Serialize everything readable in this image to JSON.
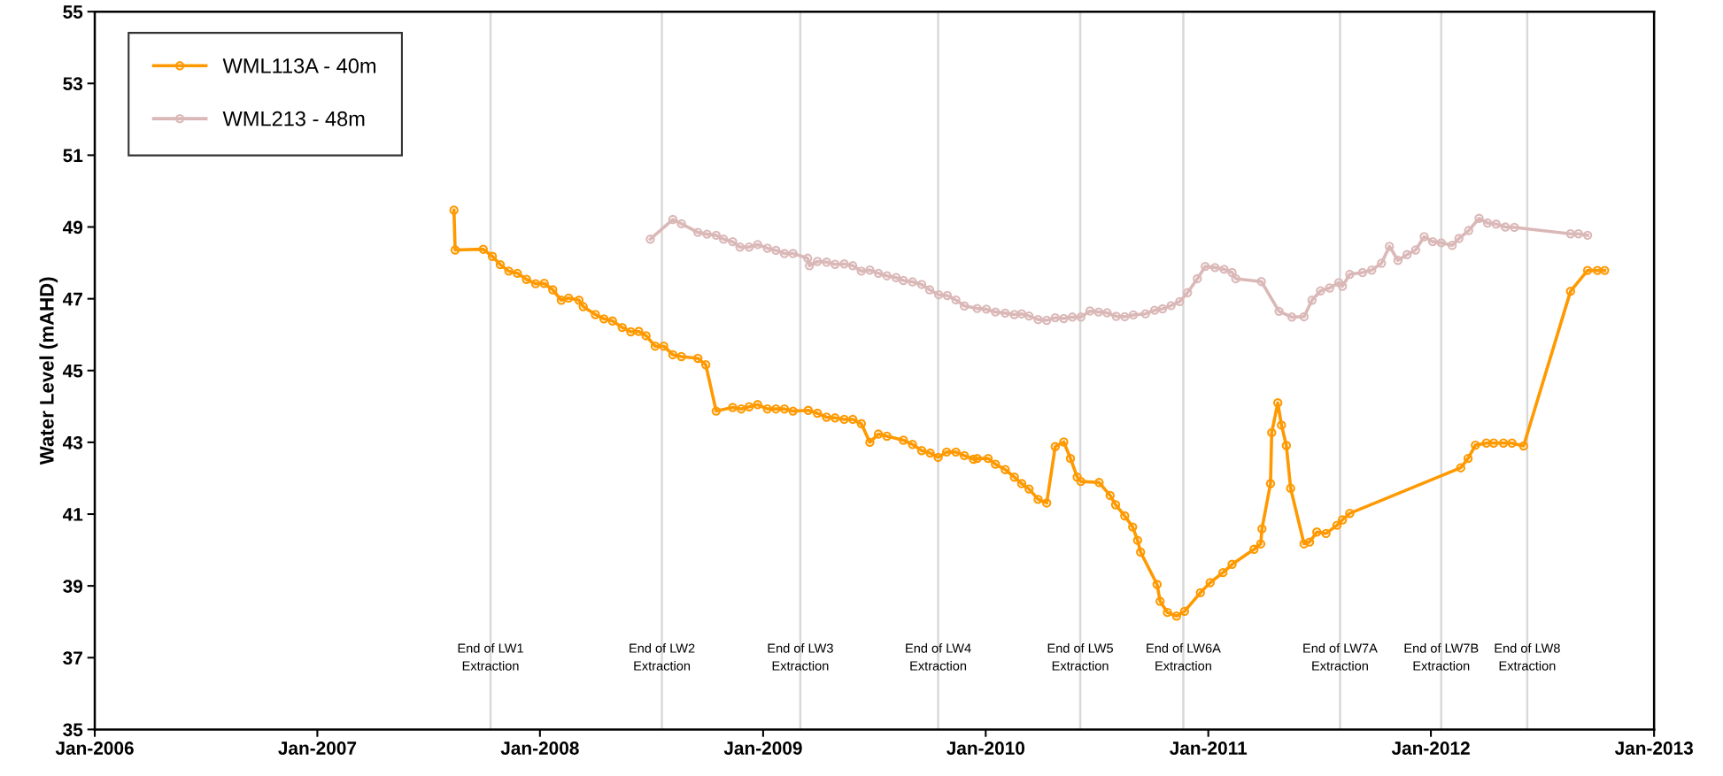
{
  "chart_data": {
    "type": "line",
    "ylabel": "Water Level (mAHD)",
    "xlim": [
      "2006-01-01",
      "2013-01-01"
    ],
    "xticks": [
      {
        "value": "2006-01-01",
        "label": "Jan-2006"
      },
      {
        "value": "2007-01-01",
        "label": "Jan-2007"
      },
      {
        "value": "2008-01-01",
        "label": "Jan-2008"
      },
      {
        "value": "2009-01-01",
        "label": "Jan-2009"
      },
      {
        "value": "2010-01-01",
        "label": "Jan-2010"
      },
      {
        "value": "2011-01-01",
        "label": "Jan-2011"
      },
      {
        "value": "2012-01-01",
        "label": "Jan-2012"
      },
      {
        "value": "2013-01-01",
        "label": "Jan-2013"
      }
    ],
    "ylim": [
      35,
      55
    ],
    "yticks": [
      35,
      37,
      39,
      41,
      43,
      45,
      47,
      49,
      51,
      53,
      55
    ],
    "grid": false,
    "legend": "top left",
    "marker": "circle",
    "line_style": "solid",
    "series": [
      {
        "name": "WML113A - 40m",
        "color": "#ff9900",
        "x": [
          "2007-08-13",
          "2007-08-15",
          "2007-09-30",
          "2007-10-15",
          "2007-10-28",
          "2007-11-11",
          "2007-11-25",
          "2007-12-10",
          "2007-12-25",
          "2008-01-08",
          "2008-01-22",
          "2008-02-05",
          "2008-02-17",
          "2008-03-05",
          "2008-03-12",
          "2008-04-01",
          "2008-04-15",
          "2008-04-29",
          "2008-05-15",
          "2008-05-29",
          "2008-06-11",
          "2008-06-23",
          "2008-07-08",
          "2008-07-22",
          "2008-08-06",
          "2008-08-20",
          "2008-09-16",
          "2008-09-29",
          "2008-10-16",
          "2008-11-12",
          "2008-11-26",
          "2008-12-09",
          "2008-12-23",
          "2009-01-08",
          "2009-01-22",
          "2009-02-05",
          "2009-02-19",
          "2009-03-16",
          "2009-03-31",
          "2009-04-15",
          "2009-04-29",
          "2009-05-14",
          "2009-05-28",
          "2009-06-11",
          "2009-06-25",
          "2009-07-09",
          "2009-07-23",
          "2009-08-19",
          "2009-09-03",
          "2009-09-18",
          "2009-10-02",
          "2009-10-15",
          "2009-10-29",
          "2009-11-13",
          "2009-11-27",
          "2009-12-12",
          "2009-12-18",
          "2010-01-05",
          "2010-01-17",
          "2010-02-02",
          "2010-02-17",
          "2010-03-01",
          "2010-03-13",
          "2010-03-28",
          "2010-04-11",
          "2010-04-25",
          "2010-05-09",
          "2010-05-20",
          "2010-05-31",
          "2010-06-06",
          "2010-07-06",
          "2010-07-24",
          "2010-08-02",
          "2010-08-17",
          "2010-08-30",
          "2010-09-07",
          "2010-09-12",
          "2010-10-09",
          "2010-10-14",
          "2010-10-26",
          "2010-11-10",
          "2010-11-23",
          "2010-12-19",
          "2011-01-04",
          "2011-01-25",
          "2011-02-09",
          "2011-03-17",
          "2011-03-28",
          "2011-03-30",
          "2011-04-13",
          "2011-04-15",
          "2011-04-25",
          "2011-05-01",
          "2011-05-09",
          "2011-05-16",
          "2011-06-07",
          "2011-06-16",
          "2011-06-28",
          "2011-07-13",
          "2011-07-31",
          "2011-08-09",
          "2011-08-21",
          "2012-02-19",
          "2012-03-02",
          "2012-03-14",
          "2012-04-01",
          "2012-04-13",
          "2012-04-29",
          "2012-05-13",
          "2012-06-01",
          "2012-08-17",
          "2012-09-14",
          "2012-09-30",
          "2012-10-12"
        ],
        "values": [
          49.47,
          48.36,
          48.38,
          48.18,
          47.95,
          47.77,
          47.71,
          47.54,
          47.42,
          47.43,
          47.25,
          46.96,
          47.02,
          46.96,
          46.78,
          46.56,
          46.44,
          46.38,
          46.2,
          46.08,
          46.09,
          45.97,
          45.68,
          45.68,
          45.44,
          45.39,
          45.34,
          45.16,
          43.87,
          43.97,
          43.93,
          43.99,
          44.05,
          43.93,
          43.93,
          43.93,
          43.87,
          43.89,
          43.81,
          43.7,
          43.68,
          43.64,
          43.64,
          43.52,
          43.0,
          43.23,
          43.17,
          43.06,
          42.94,
          42.77,
          42.7,
          42.58,
          42.73,
          42.73,
          42.63,
          42.53,
          42.55,
          42.55,
          42.39,
          42.24,
          42.03,
          41.85,
          41.7,
          41.41,
          41.31,
          42.88,
          43.01,
          42.55,
          42.03,
          41.91,
          41.88,
          41.52,
          41.26,
          40.95,
          40.64,
          40.27,
          39.94,
          39.04,
          38.57,
          38.26,
          38.16,
          38.29,
          38.81,
          39.09,
          39.37,
          39.6,
          40.02,
          40.17,
          40.59,
          41.85,
          43.27,
          44.1,
          43.48,
          42.91,
          41.72,
          40.17,
          40.22,
          40.5,
          40.46,
          40.69,
          40.84,
          41.02,
          42.29,
          42.55,
          42.92,
          42.98,
          42.98,
          42.98,
          42.98,
          42.9,
          47.21,
          47.79,
          47.79,
          47.79
        ]
      },
      {
        "name": "WML213 - 48m",
        "color": "#dbb8b8",
        "x": [
          "2008-06-30",
          "2008-08-06",
          "2008-08-20",
          "2008-09-16",
          "2008-10-01",
          "2008-10-16",
          "2008-10-28",
          "2008-11-12",
          "2008-11-24",
          "2008-12-09",
          "2008-12-23",
          "2009-01-08",
          "2009-01-22",
          "2009-02-05",
          "2009-02-19",
          "2009-03-15",
          "2009-03-18",
          "2009-03-31",
          "2009-04-15",
          "2009-04-29",
          "2009-05-14",
          "2009-05-28",
          "2009-06-11",
          "2009-06-25",
          "2009-07-09",
          "2009-07-23",
          "2009-08-07",
          "2009-08-19",
          "2009-09-03",
          "2009-09-18",
          "2009-10-01",
          "2009-10-16",
          "2009-10-30",
          "2009-11-13",
          "2009-11-27",
          "2009-12-18",
          "2010-01-02",
          "2010-01-17",
          "2010-02-02",
          "2010-02-17",
          "2010-03-01",
          "2010-03-13",
          "2010-03-28",
          "2010-04-11",
          "2010-04-25",
          "2010-05-09",
          "2010-05-23",
          "2010-06-06",
          "2010-06-21",
          "2010-07-05",
          "2010-07-19",
          "2010-08-03",
          "2010-08-17",
          "2010-08-31",
          "2010-09-20",
          "2010-10-05",
          "2010-10-18",
          "2010-11-01",
          "2010-11-15",
          "2010-11-28",
          "2010-12-14",
          "2010-12-27",
          "2011-01-12",
          "2011-01-27",
          "2011-02-09",
          "2011-02-15",
          "2011-03-29",
          "2011-04-27",
          "2011-05-18",
          "2011-06-07",
          "2011-06-20",
          "2011-07-04",
          "2011-07-19",
          "2011-08-03",
          "2011-08-09",
          "2011-08-21",
          "2011-09-11",
          "2011-09-26",
          "2011-10-12",
          "2011-10-25",
          "2011-11-08",
          "2011-11-23",
          "2011-12-07",
          "2011-12-21",
          "2012-01-04",
          "2012-01-18",
          "2012-02-05",
          "2012-02-16",
          "2012-03-03",
          "2012-03-20",
          "2012-04-03",
          "2012-04-17",
          "2012-05-02",
          "2012-05-17",
          "2012-08-17",
          "2012-08-30",
          "2012-09-14"
        ],
        "values": [
          48.66,
          49.21,
          49.09,
          48.85,
          48.8,
          48.77,
          48.66,
          48.59,
          48.44,
          48.44,
          48.51,
          48.41,
          48.35,
          48.26,
          48.26,
          48.13,
          47.92,
          48.04,
          48.02,
          47.96,
          47.97,
          47.92,
          47.77,
          47.8,
          47.71,
          47.64,
          47.59,
          47.51,
          47.47,
          47.4,
          47.25,
          47.11,
          47.09,
          46.97,
          46.8,
          46.73,
          46.71,
          46.63,
          46.6,
          46.56,
          46.58,
          46.52,
          46.42,
          46.4,
          46.47,
          46.45,
          46.49,
          46.49,
          46.66,
          46.63,
          46.61,
          46.51,
          46.5,
          46.55,
          46.58,
          46.68,
          46.72,
          46.81,
          46.92,
          47.17,
          47.56,
          47.9,
          47.87,
          47.82,
          47.73,
          47.56,
          47.48,
          46.65,
          46.49,
          46.5,
          46.96,
          47.22,
          47.3,
          47.45,
          47.35,
          47.68,
          47.73,
          47.8,
          47.99,
          48.46,
          48.07,
          48.23,
          48.36,
          48.73,
          48.59,
          48.56,
          48.49,
          48.68,
          48.9,
          49.24,
          49.11,
          49.08,
          49.0,
          48.99,
          48.81,
          48.81,
          48.77
        ]
      }
    ],
    "ref_lines": [
      {
        "axis": "x",
        "value": "2007-10-12",
        "label": "End of LW1\nExtraction",
        "color": "#d9d9d9"
      },
      {
        "axis": "x",
        "value": "2008-07-19",
        "label": "End of LW2\nExtraction",
        "color": "#d9d9d9"
      },
      {
        "axis": "x",
        "value": "2009-03-03",
        "label": "End of LW3\nExtraction",
        "color": "#d9d9d9"
      },
      {
        "axis": "x",
        "value": "2009-10-15",
        "label": "End of LW4\nExtraction",
        "color": "#d9d9d9"
      },
      {
        "axis": "x",
        "value": "2010-06-05",
        "label": "End of LW5\nExtraction",
        "color": "#d9d9d9"
      },
      {
        "axis": "x",
        "value": "2010-11-21",
        "label": "End of LW6A\nExtraction",
        "color": "#d9d9d9"
      },
      {
        "axis": "x",
        "value": "2011-08-05",
        "label": "End of LW7A\nExtraction",
        "color": "#d9d9d9"
      },
      {
        "axis": "x",
        "value": "2012-01-18",
        "label": "End of LW7B\nExtraction",
        "color": "#d9d9d9"
      },
      {
        "axis": "x",
        "value": "2012-06-07",
        "label": "End of LW8\nExtraction",
        "color": "#d9d9d9"
      }
    ]
  }
}
